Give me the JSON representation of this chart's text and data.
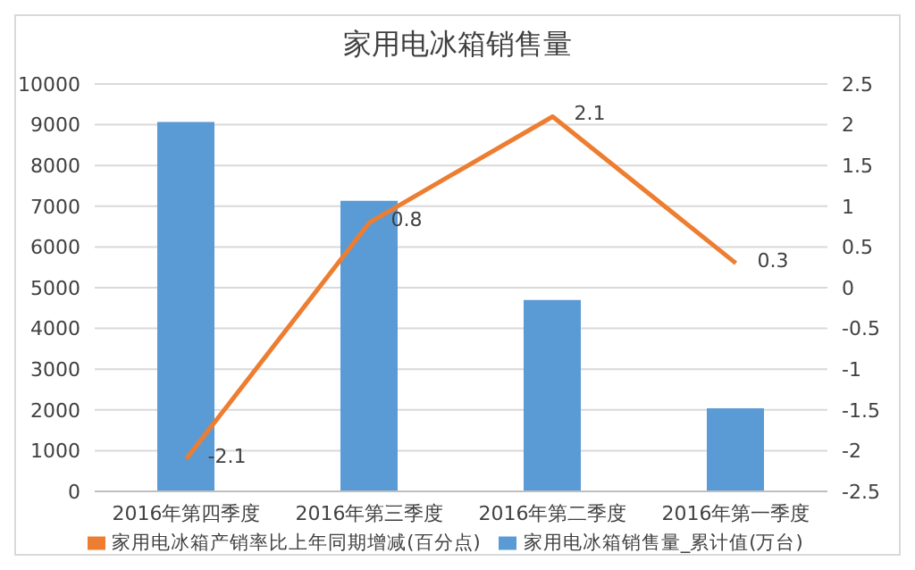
{
  "chart_data": {
    "type": "bar",
    "title": "家用电冰箱销售量",
    "categories": [
      "2016年第四季度",
      "2016年第三季度",
      "2016年第二季度",
      "2016年第一季度"
    ],
    "series": [
      {
        "name": "家用电冰箱销售量_累计值(万台)",
        "color": "#5b9bd5",
        "values": [
          9070,
          7130,
          4700,
          2040
        ]
      },
      {
        "name": "家用电冰箱产销率比上年同期增减(百分点)",
        "type": "line",
        "axis": "y2",
        "color": "#ed7d31",
        "values": [
          -2.1,
          0.8,
          2.1,
          0.3
        ],
        "value_labels": [
          "-2.1",
          "0.8",
          "2.1",
          "0.3"
        ]
      }
    ],
    "ylim": [
      0,
      10000
    ],
    "yticks": [
      0,
      1000,
      2000,
      3000,
      4000,
      5000,
      6000,
      7000,
      8000,
      9000,
      10000
    ],
    "y2lim": [
      -2.5,
      2.5
    ],
    "y2ticks": [
      -2.5,
      -2,
      -1.5,
      -1,
      -0.5,
      0,
      0.5,
      1,
      1.5,
      2,
      2.5
    ],
    "grid": "y",
    "legend": "bottom"
  }
}
